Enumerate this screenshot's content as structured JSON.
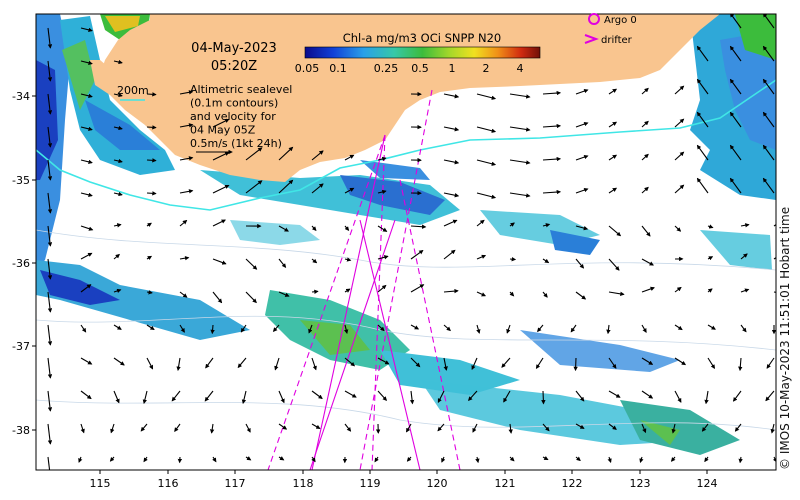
{
  "map": {
    "date": "04-May-2023",
    "time": "05:20Z",
    "contour_label": "200m",
    "altimetry_lines": [
      "Altimetric sealevel",
      "(0.1m contours)",
      "and velocity for",
      "04 May 05Z",
      "0.5m/s (1kt 24h)"
    ],
    "colorbar": {
      "title": "Chl-a mg/m3 OCi SNPP N20",
      "ticks": [
        "0.05",
        "0.1",
        "0.25",
        "0.5",
        "1",
        "2",
        "4"
      ]
    },
    "legend": {
      "argo_label": "Argo 0",
      "drifter_label": "drifter"
    },
    "x_ticks": [
      "115",
      "116",
      "117",
      "118",
      "119",
      "120",
      "121",
      "122",
      "123",
      "124"
    ],
    "y_ticks": [
      "-34",
      "-35",
      "-36",
      "-37",
      "-38"
    ],
    "credit": "© IMOS 10-May-2023 11:51:01 Hobart time",
    "colors": {
      "land": "#f9c58f",
      "contour": "#40e6e6",
      "track": "#e000e0"
    }
  }
}
